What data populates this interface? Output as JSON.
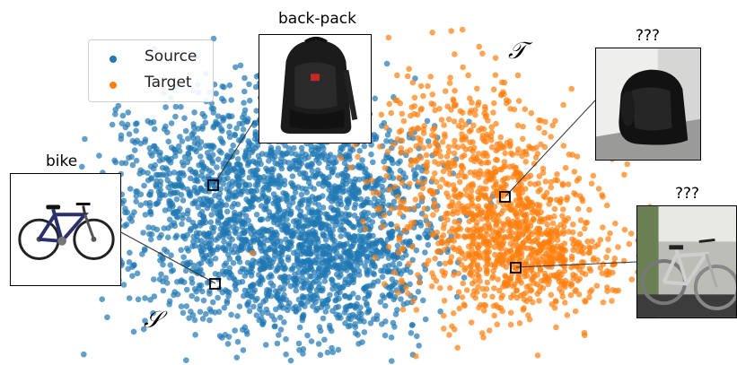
{
  "colors": {
    "source": "#1f77b4",
    "target": "#ff7f0e",
    "marker_edge": "#000000"
  },
  "legend": {
    "source": "Source",
    "target": "Target"
  },
  "domains": {
    "source_symbol": "𝒮",
    "target_symbol": "𝒯"
  },
  "images": {
    "bike": {
      "caption": "bike",
      "icon": "bicycle-product-photo"
    },
    "backpack": {
      "caption": "back-pack",
      "icon": "backpack-product-photo"
    },
    "target_backpack": {
      "caption": "???",
      "icon": "backpack-webcam-photo"
    },
    "target_bike": {
      "caption": "???",
      "icon": "bicycle-webcam-photo"
    }
  },
  "clusters": {
    "source_point_count": 2600,
    "target_point_count": 1300
  }
}
